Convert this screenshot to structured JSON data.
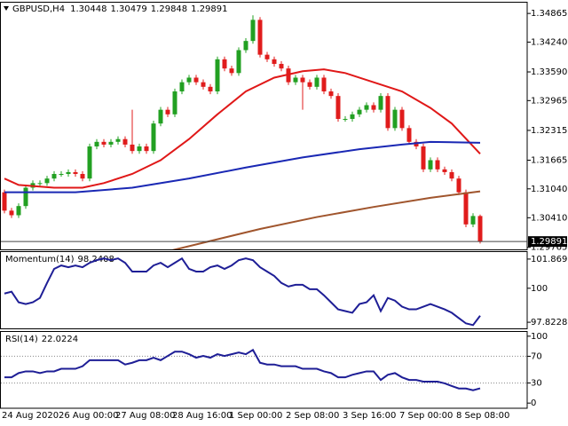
{
  "chart_data": [
    {
      "type": "candlestick",
      "symbol": "GBPUSD,H4",
      "categories": [
        "24 Aug 2020",
        null,
        null,
        null,
        null,
        null,
        null,
        null,
        "26 Aug 00:00",
        null,
        null,
        null,
        null,
        null,
        null,
        null,
        "27 Aug 08:00",
        null,
        null,
        null,
        null,
        null,
        null,
        null,
        "28 Aug 16:00",
        null,
        null,
        null,
        null,
        null,
        null,
        null,
        "1 Sep 00:00",
        null,
        null,
        null,
        null,
        null,
        null,
        null,
        "2 Sep 08:00",
        null,
        null,
        null,
        null,
        null,
        null,
        null,
        "3 Sep 16:00",
        null,
        null,
        null,
        null,
        null,
        null,
        null,
        "7 Sep 00:00",
        null,
        null,
        null,
        null,
        null,
        null,
        null,
        "8 Sep 08:00",
        null,
        null,
        null
      ],
      "open": [
        1.30965,
        1.30565,
        1.30465,
        1.30665,
        1.31065,
        1.31165,
        1.31165,
        1.31265,
        1.31365,
        1.31365,
        1.31405,
        1.31365,
        1.31265,
        1.31965,
        1.32065,
        1.32005,
        1.32065,
        1.32125,
        1.32005,
        1.31865,
        1.31965,
        1.31865,
        1.32465,
        1.32765,
        1.32665,
        1.33165,
        1.33365,
        1.33465,
        1.33365,
        1.33265,
        1.33165,
        1.33865,
        1.33665,
        1.33565,
        1.34065,
        1.34265,
        1.34725,
        1.33965,
        1.33865,
        1.33765,
        1.33665,
        1.33365,
        1.33465,
        1.33365,
        1.33265,
        1.33465,
        1.33165,
        1.33065,
        1.32565,
        1.32565,
        1.32665,
        1.32765,
        1.32865,
        1.32765,
        1.33065,
        1.32365,
        1.32765,
        1.32365,
        1.32065,
        1.31965,
        1.31465,
        1.31665,
        1.31465,
        1.31405,
        1.31265,
        1.30965,
        1.30265,
        1.30448
      ],
      "high": [
        1.31025,
        1.30625,
        1.30725,
        1.31125,
        1.31225,
        1.31225,
        1.31325,
        1.31425,
        1.31425,
        1.31465,
        1.31465,
        1.31425,
        1.32025,
        1.32125,
        1.32125,
        1.32125,
        1.32185,
        1.32185,
        1.32765,
        1.32025,
        1.32025,
        1.32525,
        1.32825,
        1.32825,
        1.33225,
        1.33425,
        1.33525,
        1.33525,
        1.33425,
        1.33325,
        1.33925,
        1.33925,
        1.33725,
        1.34125,
        1.34325,
        1.34825,
        1.34785,
        1.34025,
        1.33925,
        1.33825,
        1.33725,
        1.33525,
        1.33525,
        1.33425,
        1.33525,
        1.33525,
        1.33225,
        1.33125,
        1.32625,
        1.32725,
        1.32825,
        1.32925,
        1.32925,
        1.33125,
        1.33125,
        1.32825,
        1.32825,
        1.32425,
        1.32125,
        1.32025,
        1.31725,
        1.31725,
        1.31525,
        1.31465,
        1.31325,
        1.31025,
        1.30508,
        1.30479
      ],
      "low": [
        1.30505,
        1.30405,
        1.30405,
        1.30605,
        1.31005,
        1.31105,
        1.31105,
        1.31205,
        1.31305,
        1.31305,
        1.31305,
        1.31205,
        1.31205,
        1.31905,
        1.31945,
        1.31945,
        1.32005,
        1.31945,
        1.31805,
        1.31805,
        1.31805,
        1.31805,
        1.32405,
        1.32605,
        1.32605,
        1.33105,
        1.33305,
        1.33305,
        1.33205,
        1.33105,
        1.33105,
        1.33605,
        1.33505,
        1.33505,
        1.34005,
        1.34205,
        1.33905,
        1.33805,
        1.33705,
        1.33605,
        1.33305,
        1.33305,
        1.32765,
        1.33205,
        1.33205,
        1.33105,
        1.33005,
        1.32505,
        1.32505,
        1.32505,
        1.32605,
        1.32705,
        1.32705,
        1.32705,
        1.32305,
        1.32305,
        1.32305,
        1.32005,
        1.31905,
        1.31405,
        1.31405,
        1.31405,
        1.31345,
        1.31205,
        1.30905,
        1.30205,
        1.30205,
        1.29848
      ],
      "close": [
        1.30565,
        1.30465,
        1.30665,
        1.31065,
        1.31165,
        1.31165,
        1.31265,
        1.31365,
        1.31365,
        1.31405,
        1.31365,
        1.31265,
        1.31965,
        1.32065,
        1.32005,
        1.32065,
        1.32125,
        1.32005,
        1.31865,
        1.31965,
        1.31865,
        1.32465,
        1.32765,
        1.32665,
        1.33165,
        1.33365,
        1.33465,
        1.33365,
        1.33265,
        1.33165,
        1.33865,
        1.33665,
        1.33565,
        1.34065,
        1.34265,
        1.34725,
        1.33965,
        1.33865,
        1.33765,
        1.33665,
        1.33365,
        1.33465,
        1.33365,
        1.33265,
        1.33465,
        1.33165,
        1.33065,
        1.32565,
        1.32565,
        1.32665,
        1.32765,
        1.32865,
        1.32765,
        1.33065,
        1.32365,
        1.32765,
        1.32365,
        1.32065,
        1.31965,
        1.31465,
        1.31665,
        1.31465,
        1.31405,
        1.31265,
        1.30965,
        1.30265,
        1.30448,
        1.29891
      ],
      "up_color": "#22a022",
      "down_color": "#e01c1c",
      "overlays": [
        {
          "type": "line",
          "color": "#e01818",
          "x": [
            0,
            2,
            7,
            11,
            14,
            18,
            22,
            26,
            30,
            34,
            38,
            42,
            45,
            48,
            52,
            56,
            60,
            63,
            67
          ],
          "values": [
            1.31265,
            1.31125,
            1.31065,
            1.31065,
            1.31165,
            1.31365,
            1.31665,
            1.32125,
            1.32665,
            1.33165,
            1.33465,
            1.33605,
            1.33645,
            1.33565,
            1.33365,
            1.33165,
            1.32805,
            1.32465,
            1.31805
          ]
        },
        {
          "type": "line",
          "color": "#1a28b4",
          "x": [
            0,
            10,
            18,
            26,
            34,
            42,
            50,
            56,
            60,
            67
          ],
          "values": [
            1.30965,
            1.30965,
            1.31065,
            1.31265,
            1.31505,
            1.31725,
            1.31905,
            1.32005,
            1.32065,
            1.32045
          ]
        },
        {
          "type": "line",
          "color": "#a0552d",
          "x": [
            0,
            20,
            28,
            36,
            44,
            52,
            60,
            67
          ],
          "values": [
            1.29165,
            1.29565,
            1.29865,
            1.30165,
            1.30425,
            1.30645,
            1.30845,
            1.30985
          ]
        }
      ],
      "ylim": [
        1.2972,
        1.351
      ],
      "yticks": [
        1.34865,
        {
          "value": 1.3424,
          "label": "1.34240"
        },
        {
          "value": 1.3359,
          "label": "1.33590"
        },
        1.32965,
        1.32315,
        1.31665,
        {
          "value": 1.3104,
          "label": "1.31040"
        },
        {
          "value": 1.3041,
          "label": "1.30410"
        },
        1.29765
      ]
    },
    {
      "type": "line",
      "name": "Momentum(14)",
      "color": "#1e1e96",
      "values": [
        99.66,
        99.78,
        99.1,
        98.99,
        99.1,
        99.38,
        100.34,
        101.24,
        101.46,
        101.35,
        101.46,
        101.35,
        101.63,
        101.8,
        101.91,
        101.8,
        101.91,
        101.63,
        101.07,
        101.07,
        101.07,
        101.46,
        101.63,
        101.35,
        101.63,
        101.91,
        101.24,
        101.07,
        101.07,
        101.35,
        101.46,
        101.24,
        101.46,
        101.8,
        101.91,
        101.8,
        101.35,
        101.07,
        100.79,
        100.34,
        100.11,
        100.22,
        100.22,
        99.94,
        99.94,
        99.55,
        99.1,
        98.65,
        98.54,
        98.43,
        98.99,
        99.1,
        99.55,
        98.54,
        99.38,
        99.21,
        98.82,
        98.65,
        98.65,
        98.82,
        98.99,
        98.82,
        98.65,
        98.43,
        98.09,
        97.75,
        97.64,
        98.2408
      ],
      "ylim": [
        97.43,
        102.319
      ],
      "yticks": [
        101.8698,
        100,
        97.8228
      ]
    },
    {
      "type": "line",
      "name": "RSI(14)",
      "color": "#1e1e96",
      "values": [
        38.5,
        38.5,
        44.9,
        47.4,
        47.4,
        44.9,
        47.4,
        47.4,
        51.3,
        51.3,
        51.3,
        55.1,
        64.1,
        64.1,
        64.1,
        64.1,
        64.1,
        57.7,
        60.3,
        64.1,
        64.1,
        67.9,
        64.1,
        70.5,
        76.9,
        76.9,
        73.1,
        67.9,
        70.5,
        67.9,
        73.1,
        70.5,
        73.1,
        75.6,
        73.1,
        79.5,
        60.3,
        57.7,
        57.7,
        55.1,
        55.1,
        55.1,
        51.3,
        51.3,
        51.3,
        47.4,
        44.9,
        38.5,
        38.5,
        42.3,
        44.9,
        47.4,
        47.4,
        34.6,
        42.3,
        44.9,
        38.5,
        34.6,
        34.6,
        32.1,
        32.1,
        32.1,
        29.5,
        25.6,
        21.8,
        21.8,
        19.2,
        22.0224
      ],
      "ylim": [
        -6.4,
        106.4
      ],
      "yticks": [
        100,
        70,
        30,
        0
      ],
      "levels": [
        70,
        30
      ]
    }
  ]
}
